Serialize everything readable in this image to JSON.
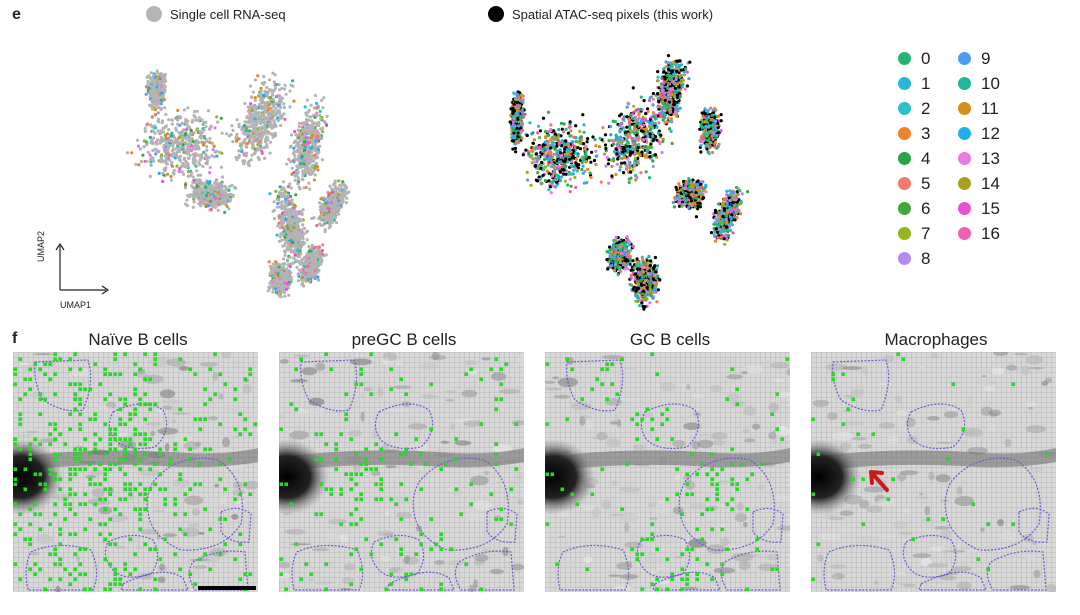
{
  "panel_e": {
    "letter": "e",
    "legend_rna": "Single cell RNA-seq",
    "legend_atac": "Spatial ATAC-seq pixels (this work)",
    "rna_color": "#b4b4b4",
    "atac_color": "#000000",
    "axis_x": "UMAP1",
    "axis_y": "UMAP2",
    "clusters": [
      {
        "label": "0",
        "color": "#22b573"
      },
      {
        "label": "1",
        "color": "#29b6d8"
      },
      {
        "label": "2",
        "color": "#2cc0c8"
      },
      {
        "label": "3",
        "color": "#f0822c"
      },
      {
        "label": "4",
        "color": "#26a745"
      },
      {
        "label": "5",
        "color": "#f07a6e"
      },
      {
        "label": "6",
        "color": "#3fa83a"
      },
      {
        "label": "7",
        "color": "#97b521"
      },
      {
        "label": "8",
        "color": "#b48cf0"
      },
      {
        "label": "9",
        "color": "#4b9ff0"
      },
      {
        "label": "10",
        "color": "#1fb89a"
      },
      {
        "label": "11",
        "color": "#d4901a"
      },
      {
        "label": "12",
        "color": "#1faeea"
      },
      {
        "label": "13",
        "color": "#e87ae0"
      },
      {
        "label": "14",
        "color": "#a8a01a"
      },
      {
        "label": "15",
        "color": "#e850d8"
      },
      {
        "label": "16",
        "color": "#f060b0"
      }
    ]
  },
  "panel_f": {
    "letter": "f",
    "maps": [
      {
        "title": "Naïve B cells"
      },
      {
        "title": "preGC B cells"
      },
      {
        "title": "GC B cells"
      },
      {
        "title": "Macrophages"
      }
    ],
    "dot_color": "#22dd22",
    "outline_color": "#6a5acd",
    "arrow_color": "#cc1a1a"
  }
}
